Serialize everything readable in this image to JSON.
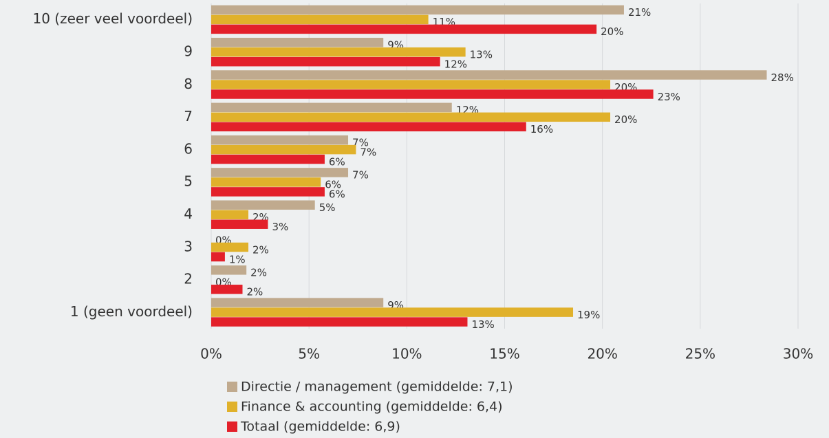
{
  "chart_data": {
    "type": "barh",
    "categories": [
      "10 (zeer veel voordeel)",
      "9",
      "8",
      "7",
      "6",
      "5",
      "4",
      "3",
      "2",
      "1 (geen voordeel)"
    ],
    "series": [
      {
        "name": "Directie / management (gemiddelde: 7,1)",
        "color": "#c0aa8e",
        "values": [
          21.1,
          8.8,
          28.4,
          12.3,
          7.0,
          7.0,
          5.3,
          0,
          1.8,
          8.8
        ],
        "value_labels": [
          "21%",
          "9%",
          "28%",
          "12%",
          "7%",
          "7%",
          "5%",
          "0%",
          "2%",
          "9%"
        ]
      },
      {
        "name": "Finance & accounting (gemiddelde: 6,4)",
        "color": "#e0b12b",
        "values": [
          11.1,
          13.0,
          20.4,
          20.4,
          7.4,
          5.6,
          1.9,
          1.9,
          0,
          18.5
        ],
        "value_labels": [
          "11%",
          "13%",
          "20%",
          "20%",
          "7%",
          "6%",
          "2%",
          "2%",
          "0%",
          "19%"
        ]
      },
      {
        "name": "Totaal (gemiddelde: 6,9)",
        "color": "#e3202a",
        "values": [
          19.7,
          11.7,
          22.6,
          16.1,
          5.8,
          5.8,
          2.9,
          0.7,
          1.6,
          13.1
        ],
        "value_labels": [
          "20%",
          "12%",
          "23%",
          "16%",
          "6%",
          "6%",
          "3%",
          "1%",
          "2%",
          "13%"
        ]
      }
    ],
    "xlim": [
      0,
      30
    ],
    "xticks": [
      {
        "value": 0,
        "label": "0%"
      },
      {
        "value": 5,
        "label": "5%"
      },
      {
        "value": 10,
        "label": "10%"
      },
      {
        "value": 15,
        "label": "15%"
      },
      {
        "value": 20,
        "label": "20%"
      },
      {
        "value": 25,
        "label": "25%"
      },
      {
        "value": 30,
        "label": "30%"
      }
    ],
    "grid": true
  }
}
